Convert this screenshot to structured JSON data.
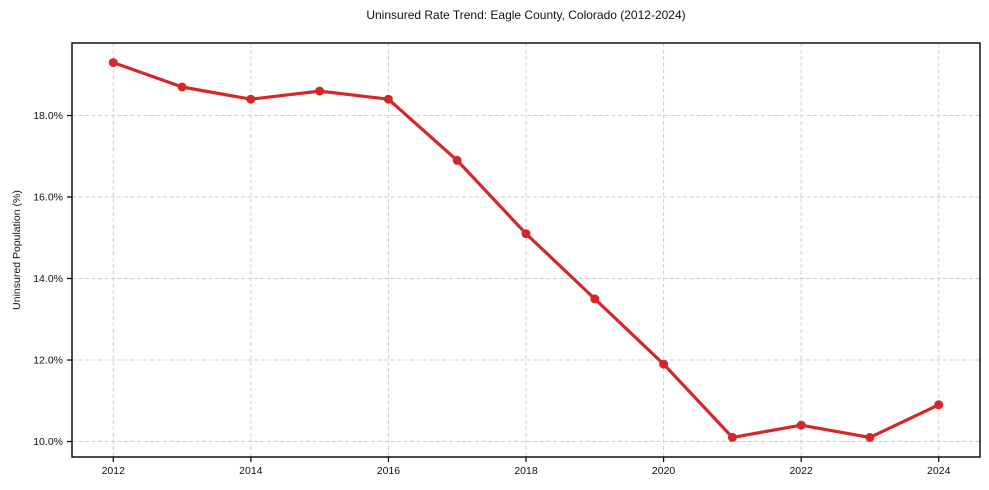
{
  "chart_data": {
    "type": "line",
    "title": "Uninsured Rate Trend: Eagle County, Colorado (2012-2024)",
    "xlabel": "",
    "ylabel": "Uninsured Population (%)",
    "x": [
      2012,
      2013,
      2014,
      2015,
      2016,
      2017,
      2018,
      2019,
      2020,
      2021,
      2022,
      2023,
      2024
    ],
    "values": [
      19.3,
      18.7,
      18.4,
      18.6,
      18.4,
      16.9,
      15.1,
      13.5,
      11.9,
      10.1,
      10.4,
      10.1,
      10.9
    ],
    "x_ticks": [
      {
        "value": 2012,
        "label": "2012"
      },
      {
        "value": 2014,
        "label": "2014"
      },
      {
        "value": 2016,
        "label": "2016"
      },
      {
        "value": 2018,
        "label": "2018"
      },
      {
        "value": 2020,
        "label": "2020"
      },
      {
        "value": 2022,
        "label": "2022"
      },
      {
        "value": 2024,
        "label": "2024"
      }
    ],
    "y_ticks": [
      {
        "value": 10,
        "label": "10.0%"
      },
      {
        "value": 12,
        "label": "12.0%"
      },
      {
        "value": 14,
        "label": "14.0%"
      },
      {
        "value": 16,
        "label": "16.0%"
      },
      {
        "value": 18,
        "label": "18.0%"
      }
    ],
    "xlim": [
      2011.4,
      2024.6
    ],
    "ylim": [
      9.62,
      19.78
    ],
    "grid": true,
    "grid_style": "dashed",
    "legend": "none",
    "marker": "circle",
    "line_color": "#d62728",
    "grid_color": "#cfcfcf",
    "axis_color": "#000000",
    "background_color": "#ffffff"
  }
}
